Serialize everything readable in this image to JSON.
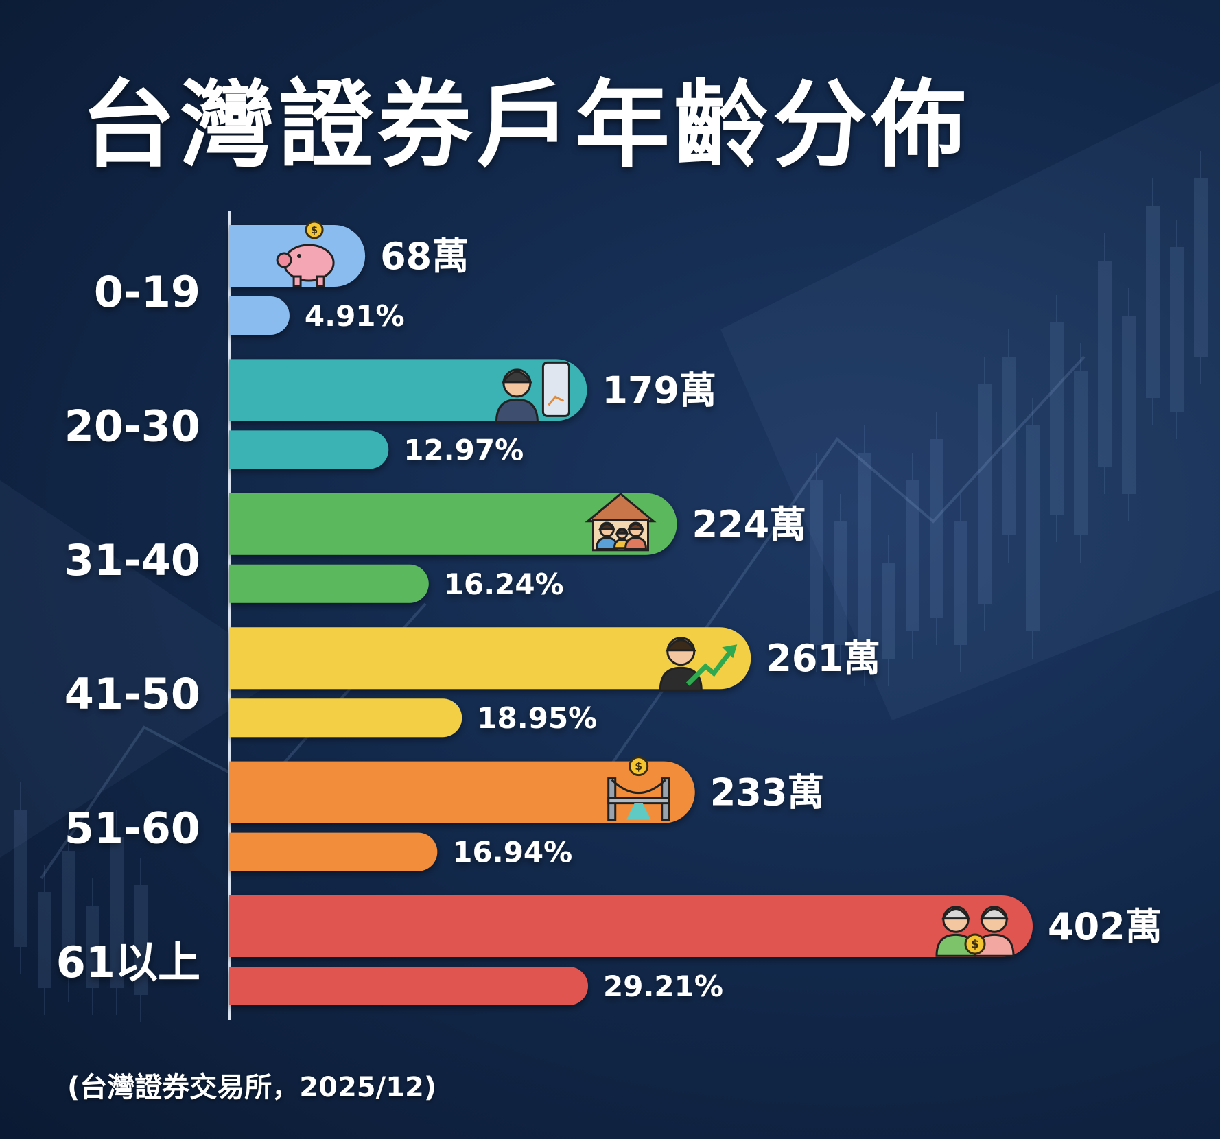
{
  "title": "台灣證券戶年齡分佈",
  "source": "(台灣證券交易所，2025/12)",
  "chart_data": {
    "type": "bar",
    "orientation": "horizontal",
    "title": "台灣證券戶年齡分佈",
    "categories": [
      "0-19",
      "20-30",
      "31-40",
      "41-50",
      "51-60",
      "61以上"
    ],
    "series": [
      {
        "values": [
          68,
          179,
          224,
          261,
          233,
          402
        ],
        "labels": [
          "68萬",
          "179萬",
          "224萬",
          "261萬",
          "233萬",
          "402萬"
        ]
      },
      {
        "values": [
          4.91,
          12.97,
          16.24,
          18.95,
          16.94,
          29.21
        ],
        "labels": [
          "4.91%",
          "12.97%",
          "16.24%",
          "18.95%",
          "16.94%",
          "29.21%"
        ]
      }
    ],
    "colors": [
      "#8bbcf0",
      "#3ab3b5",
      "#5cb85c",
      "#f2cf45",
      "#f28e3a",
      "#e0554f"
    ],
    "icons": [
      "piggy-bank-icon",
      "young-professional-phone-icon",
      "family-house-icon",
      "businessman-growth-icon",
      "bridge-coin-icon",
      "elderly-couple-coin-icon"
    ],
    "xlim": [
      0,
      402
    ],
    "grid": false
  }
}
